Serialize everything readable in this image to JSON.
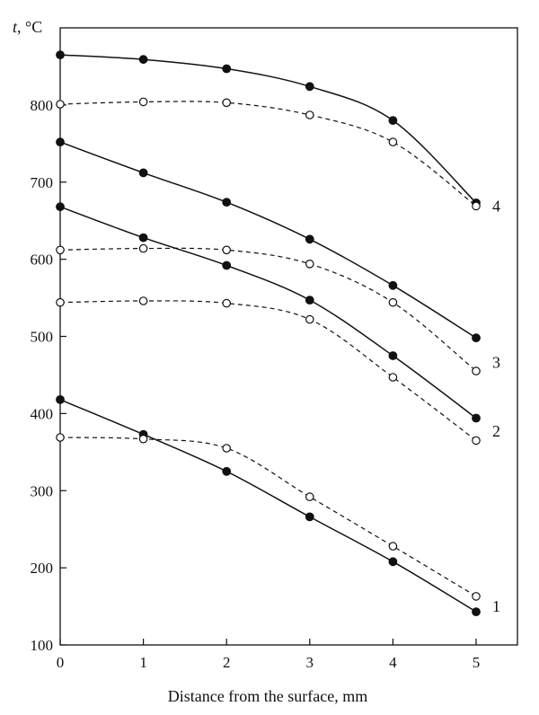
{
  "chart_data": {
    "type": "line",
    "title": "",
    "xlabel": "Distance from the surface, mm",
    "ylabel_italic": "t",
    "ylabel_unit": ", °C",
    "xlim": [
      0,
      5
    ],
    "ylim": [
      100,
      900
    ],
    "x_ticks": [
      0,
      1,
      2,
      3,
      4,
      5
    ],
    "y_ticks": [
      100,
      200,
      300,
      400,
      500,
      600,
      700,
      800
    ],
    "grid": false,
    "legend": "none",
    "x": [
      0,
      1,
      2,
      3,
      4,
      5
    ],
    "series": [
      {
        "curve": "1",
        "style": "solid",
        "marker": "filled",
        "values": [
          418,
          373,
          325,
          266,
          208,
          143
        ]
      },
      {
        "curve": "1",
        "style": "dashed",
        "marker": "open",
        "values": [
          369,
          367,
          355,
          292,
          228,
          163
        ]
      },
      {
        "curve": "2",
        "style": "solid",
        "marker": "filled",
        "values": [
          668,
          628,
          592,
          547,
          475,
          394
        ]
      },
      {
        "curve": "2",
        "style": "dashed",
        "marker": "open",
        "values": [
          544,
          546,
          543,
          522,
          447,
          365
        ]
      },
      {
        "curve": "3",
        "style": "solid",
        "marker": "filled",
        "values": [
          752,
          712,
          674,
          626,
          566,
          498
        ]
      },
      {
        "curve": "3",
        "style": "dashed",
        "marker": "open",
        "values": [
          612,
          614,
          612,
          594,
          544,
          455
        ]
      },
      {
        "curve": "4",
        "style": "solid",
        "marker": "filled",
        "values": [
          865,
          859,
          847,
          824,
          780,
          673
        ]
      },
      {
        "curve": "4",
        "style": "dashed",
        "marker": "open",
        "values": [
          801,
          804,
          803,
          787,
          752,
          669
        ]
      }
    ],
    "annotations": [
      {
        "text": "1",
        "x": 5,
        "y": 150
      },
      {
        "text": "2",
        "x": 5,
        "y": 377
      },
      {
        "text": "3",
        "x": 5,
        "y": 466
      },
      {
        "text": "4",
        "x": 5,
        "y": 669
      }
    ]
  }
}
